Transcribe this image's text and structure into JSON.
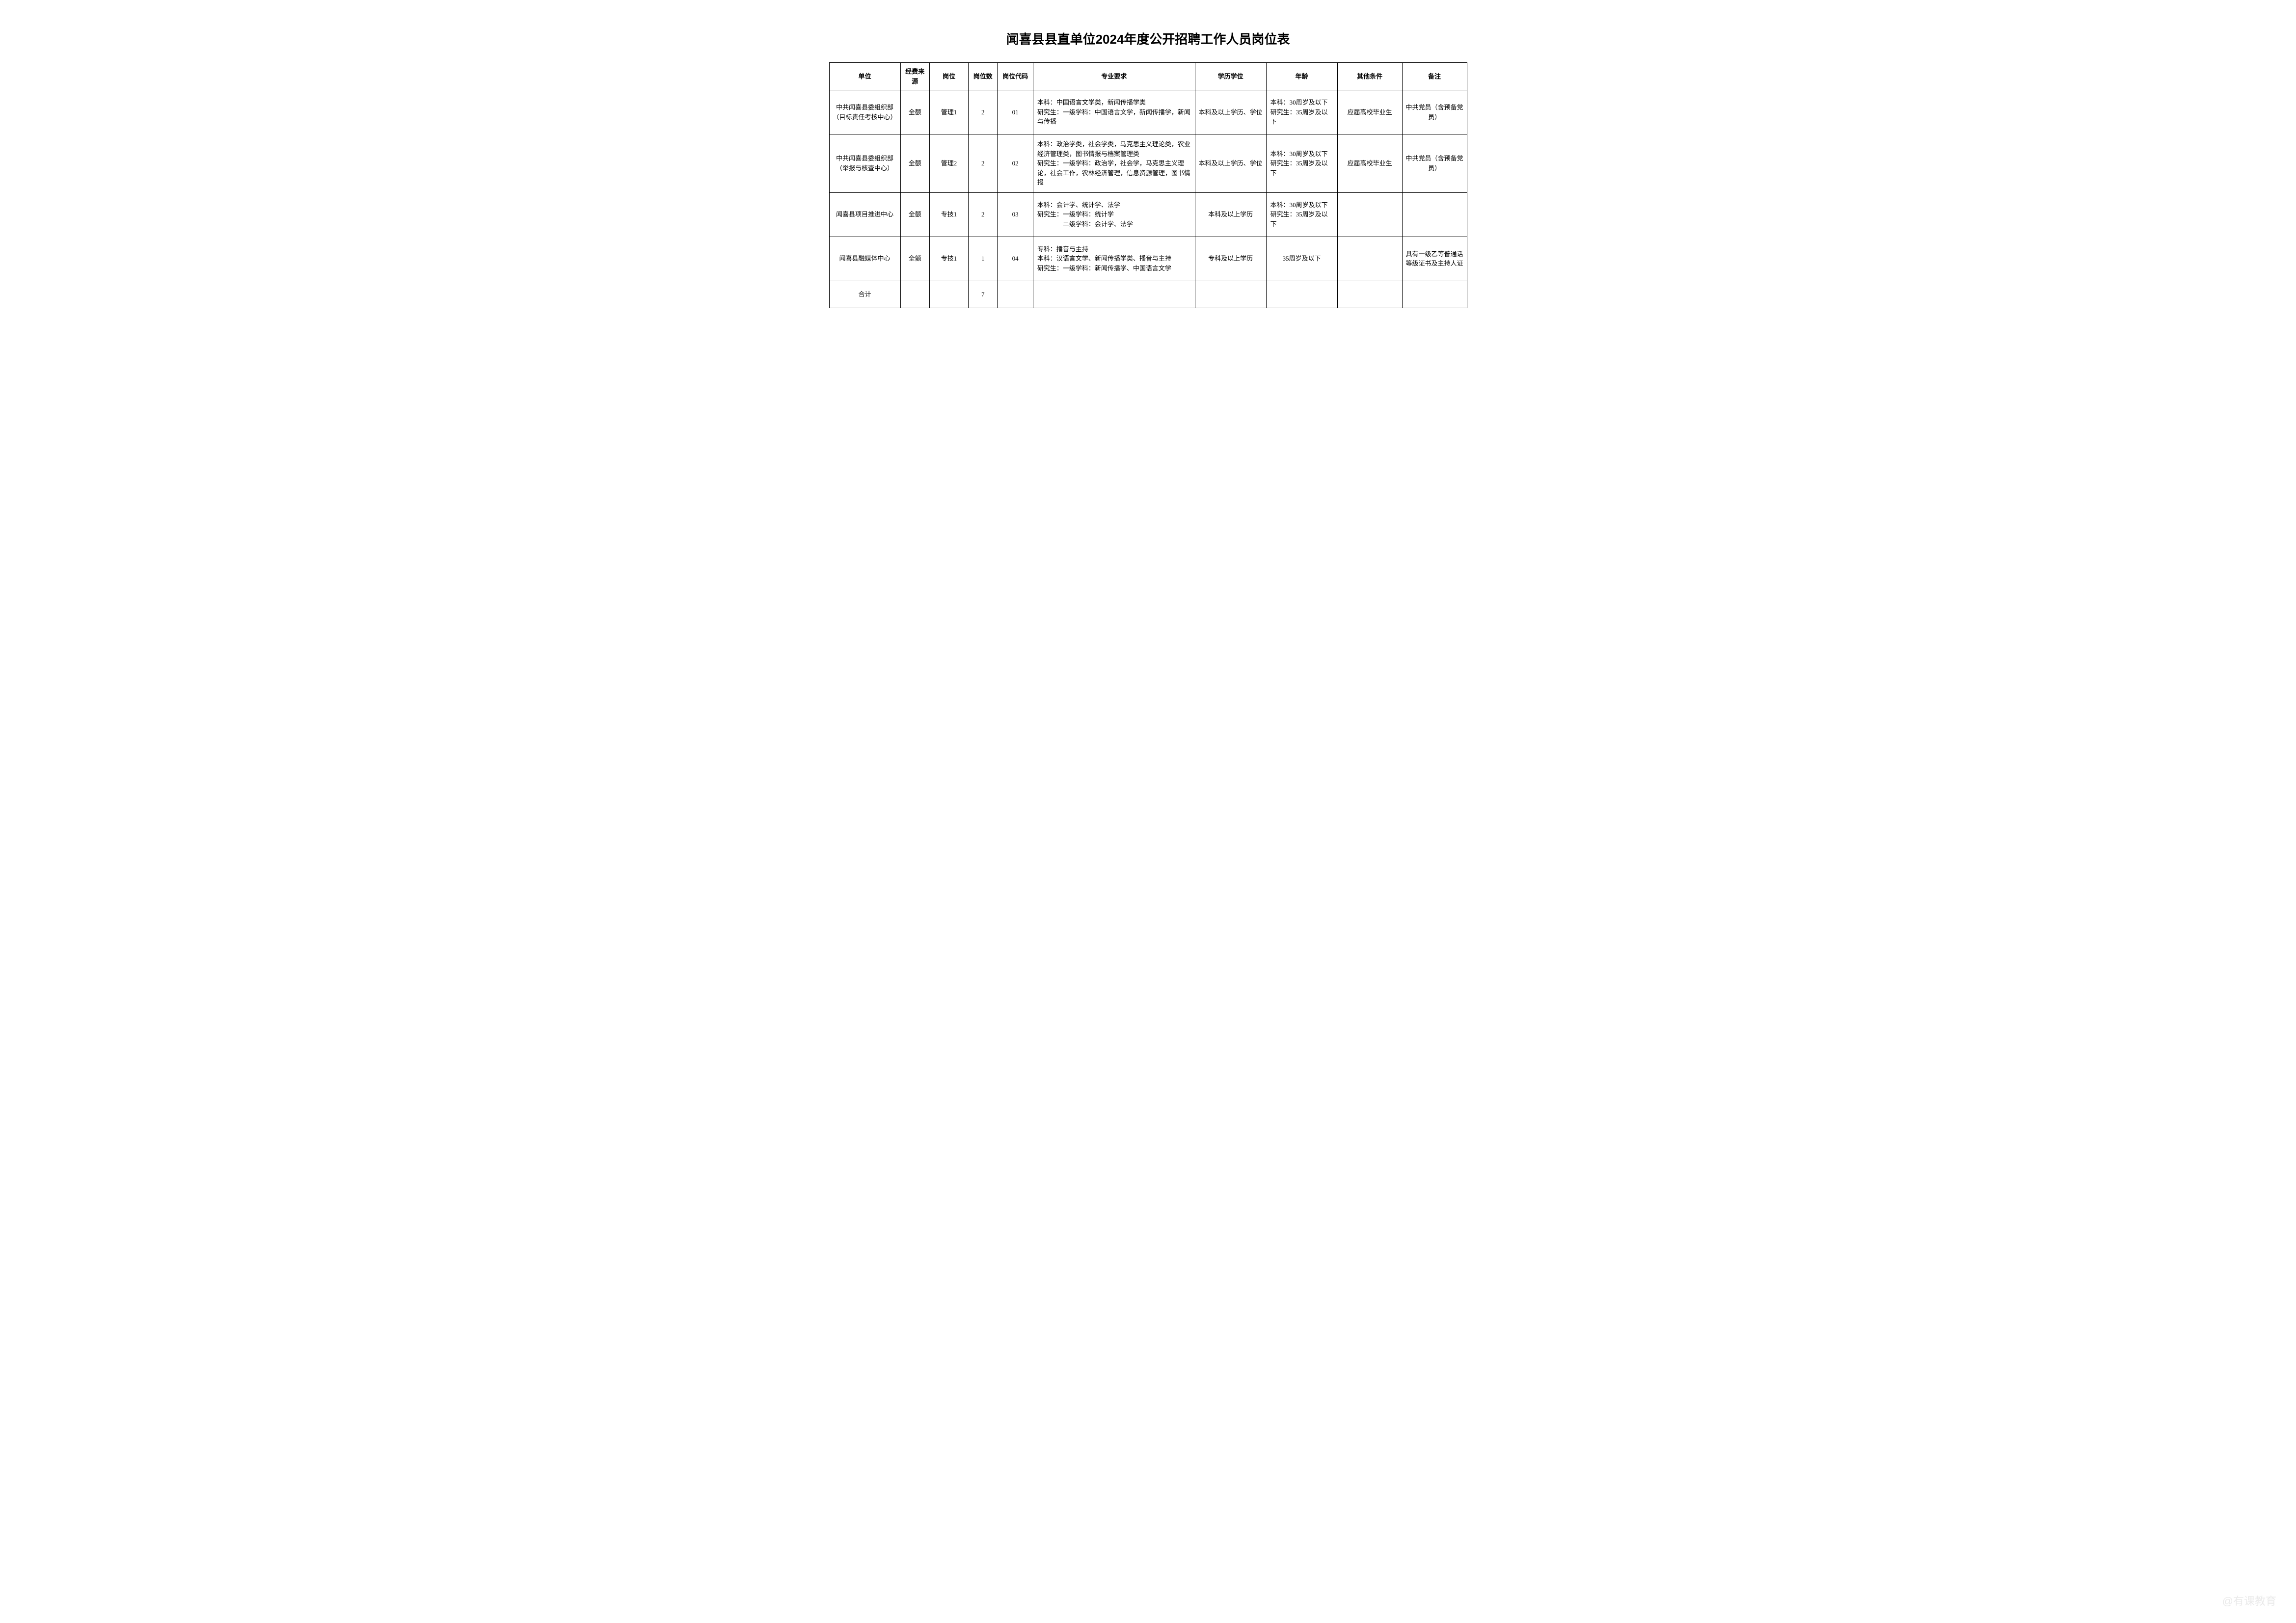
{
  "title": "闻喜县县直单位2024年度公开招聘工作人员岗位表",
  "headers": {
    "unit": "单位",
    "funding": "经费来源",
    "position": "岗位",
    "count": "岗位数",
    "code": "岗位代码",
    "major": "专业要求",
    "education": "学历学位",
    "age": "年龄",
    "other": "其他条件",
    "remark": "备注"
  },
  "rows": [
    {
      "unit": "中共闻喜县委组织部（目标责任考核中心）",
      "funding": "全额",
      "position": "管理1",
      "count": "2",
      "code": "01",
      "major": "本科：中国语言文学类，新闻传播学类\n研究生：一级学科：中国语言文学，新闻传播学，新闻与传播",
      "education": "本科及以上学历、学位",
      "age": "本科：30周岁及以下\n研究生：35周岁及以下",
      "other": "应届高校毕业生",
      "remark": "中共党员（含预备党员）"
    },
    {
      "unit": "中共闻喜县委组织部（举报与核查中心）",
      "funding": "全额",
      "position": "管理2",
      "count": "2",
      "code": "02",
      "major": "本科：政治学类，社会学类，马克思主义理论类，农业经济管理类，图书情报与档案管理类\n研究生：一级学科：政治学，社会学，马克思主义理论，社会工作，农林经济管理，信息资源管理，图书情报",
      "education": "本科及以上学历、学位",
      "age": "本科：30周岁及以下\n研究生：35周岁及以下",
      "other": "应届高校毕业生",
      "remark": "中共党员（含预备党员）"
    },
    {
      "unit": "闻喜县项目推进中心",
      "funding": "全额",
      "position": "专技1",
      "count": "2",
      "code": "03",
      "major": "本科：会计学、统计学、法学\n研究生：一级学科：统计学\n　　　　二级学科：会计学、法学",
      "education": "本科及以上学历",
      "age": "本科：30周岁及以下\n研究生：35周岁及以下",
      "other": "",
      "remark": ""
    },
    {
      "unit": "闻喜县融媒体中心",
      "funding": "全额",
      "position": "专技1",
      "count": "1",
      "code": "04",
      "major": "专科：播音与主持\n本科：汉语言文学、新闻传播学类、播音与主持\n研究生：一级学科：新闻传播学、中国语言文学",
      "education": "专科及以上学历",
      "age": "35周岁及以下",
      "other": "",
      "remark": "具有一级乙等普通话等级证书及主持人证"
    }
  ],
  "total": {
    "label": "合计",
    "count": "7"
  },
  "watermark": "@有课教育",
  "styling": {
    "background_color": "#ffffff",
    "border_color": "#000000",
    "text_color": "#000000",
    "title_fontsize": 26,
    "cell_fontsize": 13,
    "watermark_color": "#dddddd",
    "column_widths_pct": [
      11,
      4.5,
      6,
      4.5,
      5.5,
      25,
      11,
      11,
      10,
      10
    ]
  }
}
